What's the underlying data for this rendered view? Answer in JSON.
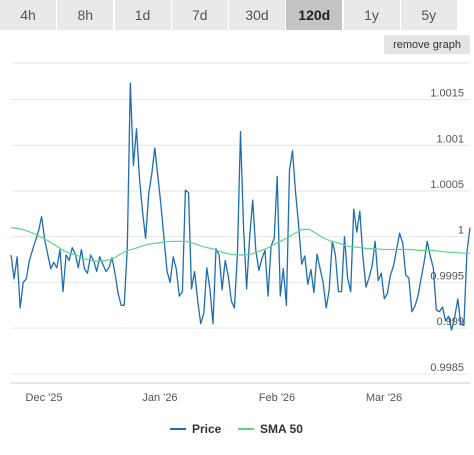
{
  "range_tabs": [
    {
      "label": "4h",
      "active": false
    },
    {
      "label": "8h",
      "active": false
    },
    {
      "label": "1d",
      "active": false
    },
    {
      "label": "7d",
      "active": false
    },
    {
      "label": "30d",
      "active": false
    },
    {
      "label": "120d",
      "active": true
    },
    {
      "label": "1y",
      "active": false
    },
    {
      "label": "5y",
      "active": false
    }
  ],
  "remove_graph_label": "remove graph",
  "colors": {
    "price": "#1f6db0",
    "sma": "#5fd38a",
    "grid": "#e6e6e6",
    "tab_bg": "#e9e9e9",
    "tab_active_bg": "#c3c3c3"
  },
  "chart_data": {
    "type": "line",
    "x_ticks": [
      "Dec '25",
      "Jan '26",
      "Feb '26",
      "Mar '26"
    ],
    "y_ticks": [
      "1.0015",
      "1.001",
      "1.0005",
      "1",
      "0.9995",
      "0.999",
      "0.9985"
    ],
    "ylim": [
      0.9984,
      1.0019
    ],
    "grid": true,
    "legend_position": "bottom-center",
    "series": [
      {
        "name": "Price",
        "color": "#1f6db0",
        "values": [
          0.9998,
          0.99954,
          0.99978,
          0.99922,
          0.9995,
          0.99954,
          0.99974,
          0.99985,
          0.99996,
          1.00006,
          1.00022,
          0.99997,
          0.99981,
          0.99965,
          0.99972,
          0.99966,
          0.99986,
          0.9994,
          0.9998,
          0.99974,
          0.99988,
          0.99981,
          0.99966,
          0.99986,
          0.99965,
          0.9996,
          0.9998,
          0.99974,
          0.99962,
          0.99978,
          0.9997,
          0.99962,
          0.99966,
          0.99977,
          0.9996,
          0.99938,
          0.99925,
          0.99925,
          0.99988,
          1.00168,
          1.00078,
          1.00118,
          1.00063,
          1.00027,
          0.99998,
          1.00047,
          1.00069,
          1.00097,
          1.00066,
          1.00035,
          0.99998,
          0.99962,
          0.9995,
          0.99978,
          0.99965,
          0.99935,
          0.9994,
          1.00051,
          1.00048,
          0.99943,
          0.99962,
          0.9993,
          0.99905,
          0.99916,
          0.99966,
          0.99943,
          0.99905,
          0.99987,
          0.9998,
          0.99942,
          0.99974,
          0.99957,
          0.9993,
          0.99922,
          0.9998,
          1.00115,
          1.00008,
          0.99943,
          1.0,
          1.0004,
          0.99985,
          0.99963,
          0.99976,
          0.99985,
          0.99935,
          0.9999,
          0.99998,
          1.00066,
          0.99935,
          0.99965,
          0.99925,
          1.00073,
          1.00094,
          1.00048,
          1.00013,
          0.9997,
          0.99979,
          0.99948,
          0.99964,
          0.99939,
          0.99981,
          0.99965,
          0.9995,
          0.99922,
          0.99942,
          0.99995,
          0.9998,
          0.9994,
          0.9994,
          1.0,
          0.99955,
          0.9994,
          1.0003,
          1.00005,
          1.00028,
          0.99978,
          0.99945,
          0.99955,
          0.99968,
          0.99995,
          0.99952,
          0.9996,
          0.99932,
          0.99938,
          0.99958,
          0.99968,
          0.99986,
          1.00004,
          0.99993,
          0.99958,
          0.99955,
          0.99918,
          0.99924,
          0.99935,
          0.99954,
          0.99972,
          0.99995,
          0.99979,
          0.99966,
          0.9992,
          0.99918,
          0.99923,
          0.99908,
          0.99913,
          0.99898,
          0.99912,
          0.99932,
          0.99904,
          0.99903,
          0.99983,
          1.0001
        ],
        "x_range": [
          0,
          152
        ]
      },
      {
        "name": "SMA 50",
        "color": "#5fd38a",
        "values": [
          1.0001,
          1.00009,
          1.00007,
          1.00004,
          1.0,
          0.99996,
          0.99991,
          0.99986,
          0.99982,
          0.9998,
          0.99976,
          0.99974,
          0.99973,
          0.99974,
          0.99976,
          0.99981,
          0.99985,
          0.99987,
          0.9999,
          0.99992,
          0.99993,
          0.99994,
          0.99995,
          0.99995,
          0.99995,
          0.99993,
          0.9999,
          0.99988,
          0.99986,
          0.99983,
          0.99981,
          0.9998,
          0.9998,
          0.99981,
          0.99984,
          0.99987,
          0.99991,
          0.99995,
          0.99999,
          1.00004,
          1.00008,
          1.00008,
          1.00003,
          0.99998,
          0.99995,
          0.99993,
          0.9999,
          0.99989,
          0.99988,
          0.99987,
          0.99987,
          0.99986,
          0.99986,
          0.99986,
          0.99986,
          0.99986,
          0.99985,
          0.99985,
          0.99985,
          0.99984,
          0.99983,
          0.99983,
          0.99982,
          0.99982
        ],
        "x_range": [
          0,
          152
        ]
      }
    ]
  }
}
